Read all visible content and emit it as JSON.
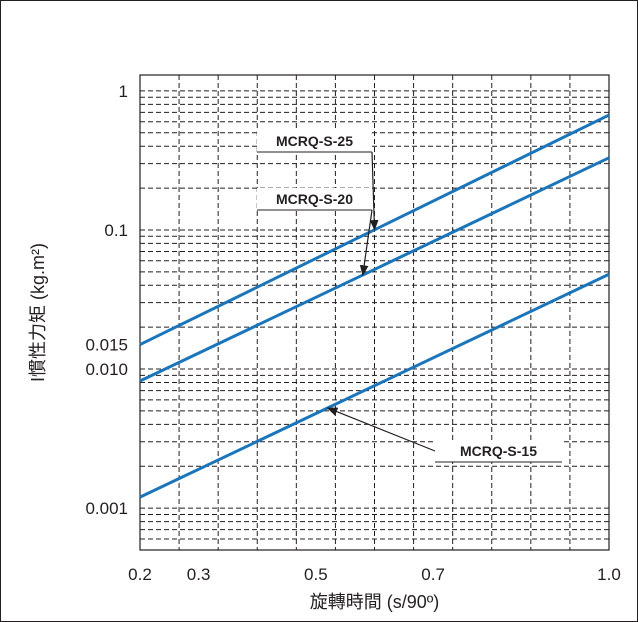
{
  "chart_data": {
    "type": "line",
    "xlabel": "旋轉時間 (s/90º)",
    "ylabel": "I慣性力矩 (kg.m²)",
    "x_scale": "linear",
    "y_scale": "log",
    "xlim": [
      0.2,
      1.0
    ],
    "ylim": [
      0.0005,
      1.3
    ],
    "grid": true,
    "x_ticks": [
      {
        "value": 0.2,
        "label": "0.2"
      },
      {
        "value": 0.3,
        "label": "0.3"
      },
      {
        "value": 0.5,
        "label": "0.5"
      },
      {
        "value": 0.7,
        "label": "0.7"
      },
      {
        "value": 1.0,
        "label": "1.0"
      }
    ],
    "y_ticks": [
      {
        "value": 1,
        "label": "1"
      },
      {
        "value": 0.1,
        "label": "0.1"
      },
      {
        "value": 0.015,
        "label": "0.015"
      },
      {
        "value": 0.01,
        "label": "0.010"
      },
      {
        "value": 0.001,
        "label": "0.001"
      }
    ],
    "series": [
      {
        "name": "MCRQ-S-25",
        "x": [
          0.2,
          1.0
        ],
        "y": [
          0.015,
          0.67
        ],
        "color": "#1a75bb"
      },
      {
        "name": "MCRQ-S-20",
        "x": [
          0.2,
          1.0
        ],
        "y": [
          0.0082,
          0.33
        ],
        "color": "#1a75bb"
      },
      {
        "name": "MCRQ-S-15",
        "x": [
          0.2,
          1.0
        ],
        "y": [
          0.0012,
          0.048
        ],
        "color": "#1a75bb"
      }
    ]
  }
}
